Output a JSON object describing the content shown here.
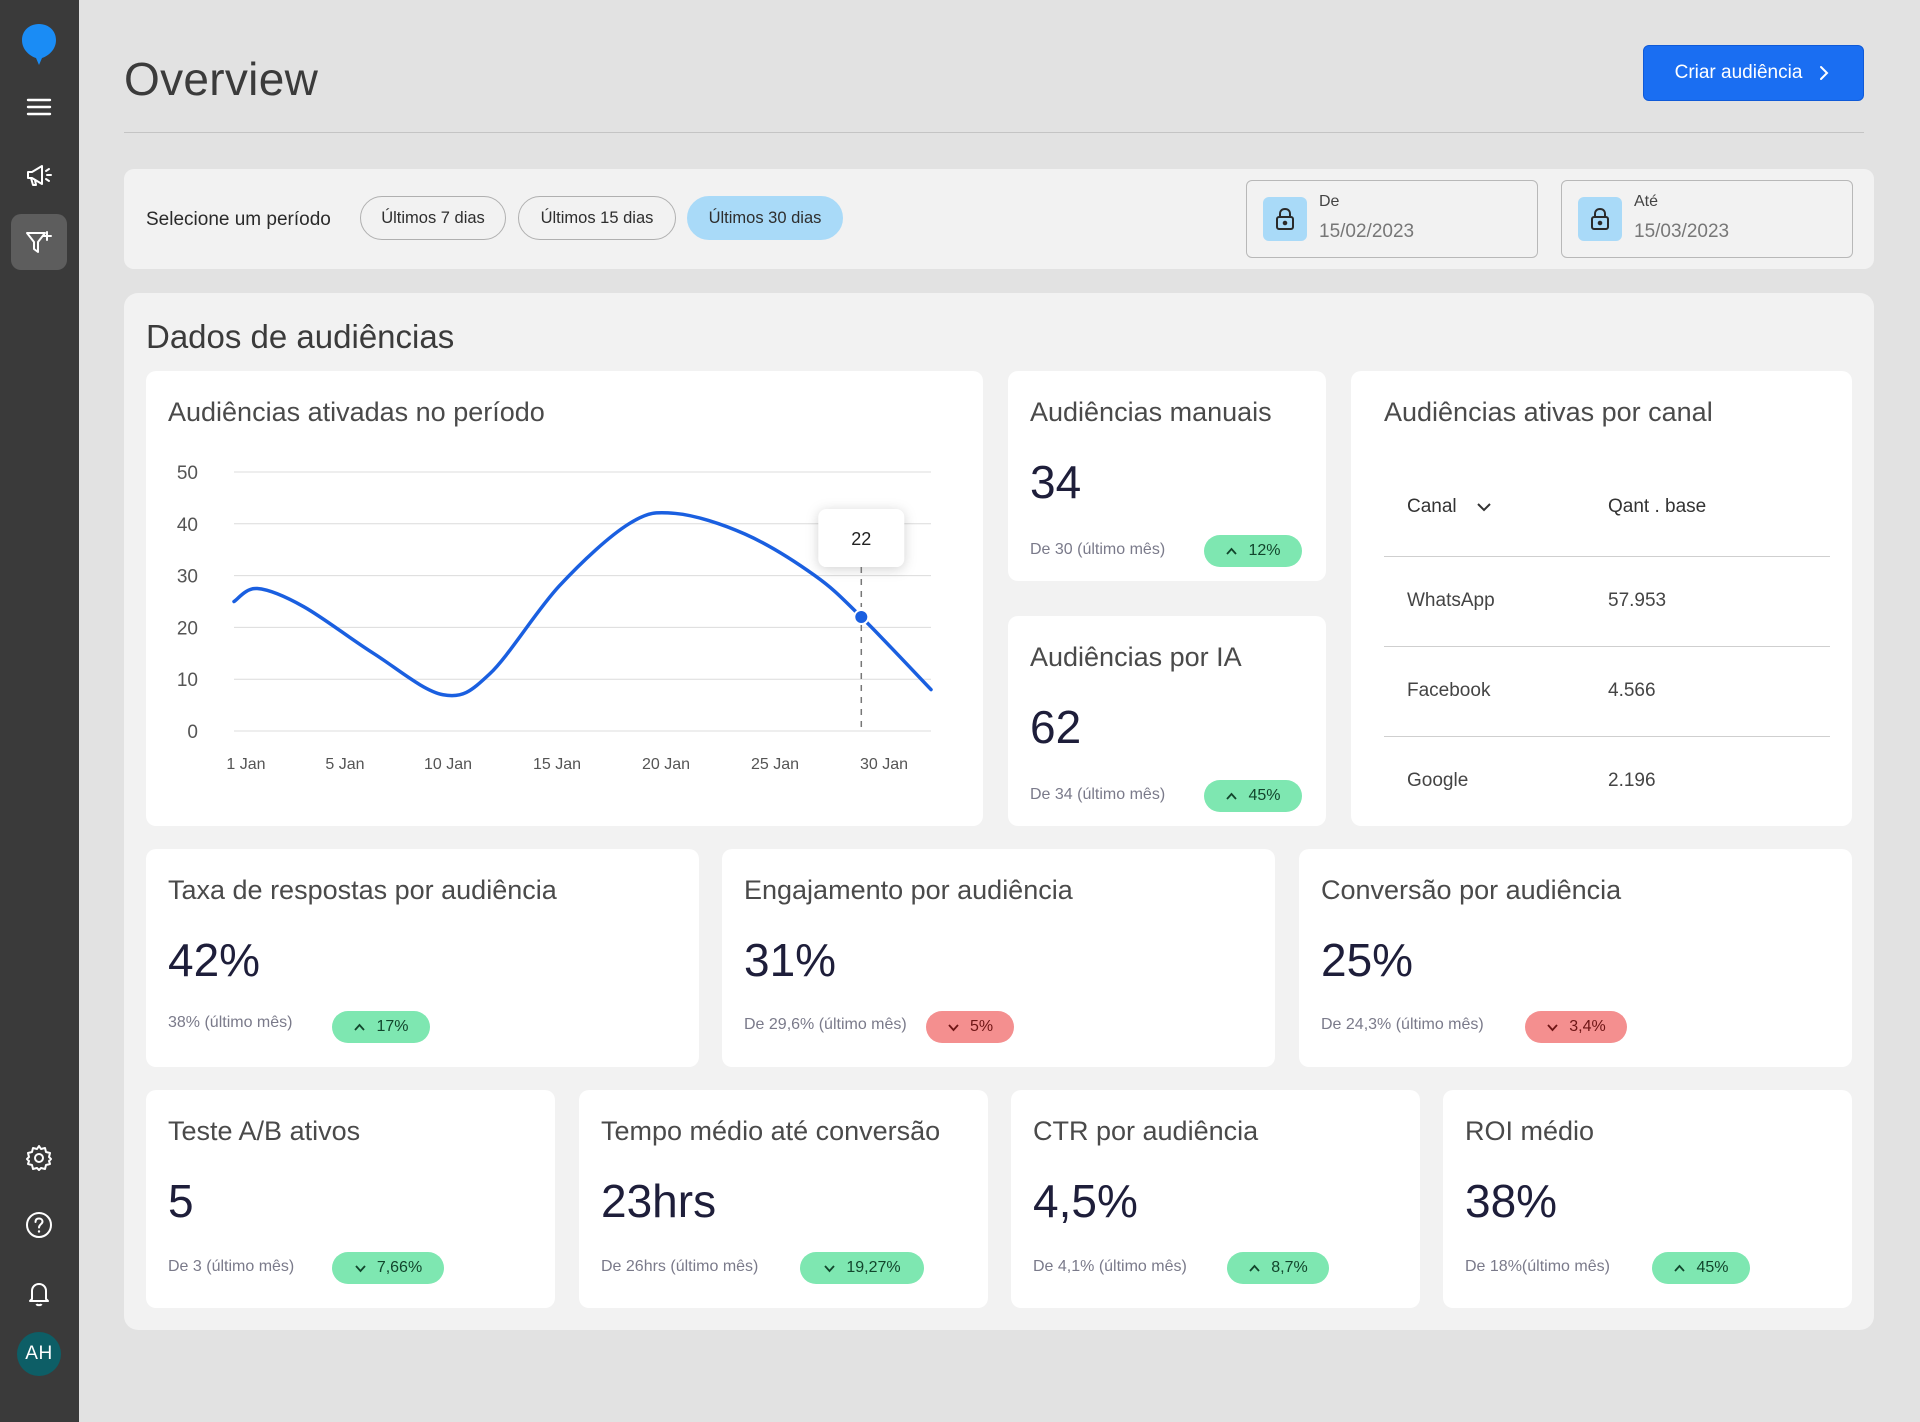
{
  "header": {
    "title": "Overview",
    "create_button": "Criar audiência"
  },
  "filter": {
    "label": "Selecione um período",
    "periods": [
      "Últimos 7 dias",
      "Últimos 15 dias",
      "Últimos 30 dias"
    ],
    "selected_period": "Últimos 30 dias",
    "from_label": "De",
    "from_value": "15/02/2023",
    "to_label": "Até",
    "to_value": "15/03/2023"
  },
  "panel": {
    "title": "Dados de audiências"
  },
  "chart_card": {
    "title": "Audiências ativadas no período",
    "tooltip": "22"
  },
  "chart_data": {
    "type": "line",
    "x_ticks": [
      "1 Jan",
      "5 Jan",
      "10 Jan",
      "15 Jan",
      "20 Jan",
      "25 Jan",
      "30 Jan"
    ],
    "y_ticks": [
      "50",
      "40",
      "30",
      "20",
      "10",
      "0"
    ],
    "ylim": [
      0,
      50
    ],
    "x_range": [
      1,
      31
    ],
    "series": [
      {
        "points": [
          [
            1,
            25
          ],
          [
            2,
            27.5
          ],
          [
            4,
            24
          ],
          [
            7,
            15
          ],
          [
            10,
            7
          ],
          [
            12,
            11
          ],
          [
            15,
            28
          ],
          [
            18,
            40
          ],
          [
            20,
            42
          ],
          [
            23,
            38
          ],
          [
            26,
            30
          ],
          [
            28,
            22
          ],
          [
            31,
            8
          ]
        ]
      }
    ],
    "highlight": {
      "x": 28,
      "y": 22,
      "label": "22"
    },
    "grid": true
  },
  "manual": {
    "title": "Audiências manuais",
    "value": "34",
    "previous": "De 30 (último mês)",
    "change": "12%",
    "trend": "up"
  },
  "ai": {
    "title": "Audiências por IA",
    "value": "62",
    "previous": "De 34 (último mês)",
    "change": "45%",
    "trend": "up"
  },
  "channels": {
    "title": "Audiências ativas por canal",
    "col_channel": "Canal",
    "col_base": "Qant . base",
    "rows": [
      {
        "channel": "WhatsApp",
        "base": "57.953"
      },
      {
        "channel": "Facebook",
        "base": "4.566"
      },
      {
        "channel": "Google",
        "base": "2.196"
      }
    ]
  },
  "metrics_row1": [
    {
      "title": "Taxa de respostas por audiência",
      "value": "42%",
      "previous": "38% (último mês)",
      "change": "17%",
      "trend": "up"
    },
    {
      "title": "Engajamento por audiência",
      "value": "31%",
      "previous": "De 29,6% (último mês)",
      "change": "5%",
      "trend": "down"
    },
    {
      "title": "Conversão por audiência",
      "value": "25%",
      "previous": "De 24,3% (último mês)",
      "change": "3,4%",
      "trend": "down"
    }
  ],
  "metrics_row2": [
    {
      "title": "Teste A/B ativos",
      "value": "5",
      "previous": "De 3 (último mês)",
      "change": "7,66%",
      "trend": "down-arrow-green"
    },
    {
      "title": "Tempo médio até conversão",
      "value": "23hrs",
      "previous": "De 26hrs (último mês)",
      "change": "19,27%",
      "trend": "down-arrow-green"
    },
    {
      "title": "CTR por audiência",
      "value": "4,5%",
      "previous": "De 4,1% (último mês)",
      "change": "8,7%",
      "trend": "up"
    },
    {
      "title": "ROI médio",
      "value": "38%",
      "previous": "De 18%(último mês)",
      "change": "45%",
      "trend": "up"
    }
  ],
  "user": {
    "initials": "AH"
  },
  "colors": {
    "accent": "#1a6ef2",
    "line": "#1a5fe0",
    "positive": "#7ee7b1",
    "negative": "#f48f8f",
    "pill_active": "#a9daf8"
  }
}
